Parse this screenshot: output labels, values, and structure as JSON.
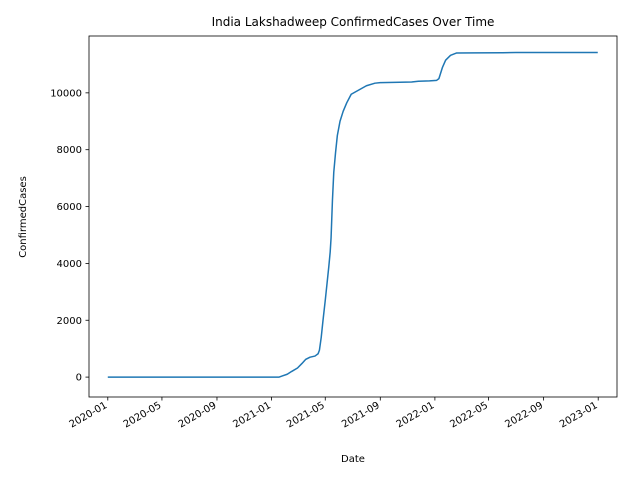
{
  "chart_data": {
    "type": "line",
    "title": "India Lakshadweep ConfirmedCases Over Time",
    "xlabel": "Date",
    "ylabel": "ConfirmedCases",
    "x_ticks": [
      "2020-01",
      "2020-05",
      "2020-09",
      "2021-01",
      "2021-05",
      "2021-09",
      "2022-01",
      "2022-05",
      "2022-09",
      "2023-01"
    ],
    "y_ticks": [
      0,
      2000,
      4000,
      6000,
      8000,
      10000
    ],
    "xlim": [
      "2019-11-20",
      "2023-02-12"
    ],
    "ylim": [
      -700,
      12000
    ],
    "grid": false,
    "series": [
      {
        "color": "#1f77b4",
        "points": [
          [
            "2020-01-01",
            0
          ],
          [
            "2020-06-01",
            0
          ],
          [
            "2020-12-01",
            0
          ],
          [
            "2021-01-18",
            0
          ],
          [
            "2021-01-25",
            40
          ],
          [
            "2021-02-05",
            100
          ],
          [
            "2021-02-15",
            200
          ],
          [
            "2021-02-28",
            320
          ],
          [
            "2021-03-10",
            480
          ],
          [
            "2021-03-18",
            620
          ],
          [
            "2021-03-28",
            700
          ],
          [
            "2021-04-08",
            740
          ],
          [
            "2021-04-15",
            820
          ],
          [
            "2021-04-18",
            950
          ],
          [
            "2021-04-22",
            1400
          ],
          [
            "2021-04-26",
            2000
          ],
          [
            "2021-05-01",
            2700
          ],
          [
            "2021-05-05",
            3300
          ],
          [
            "2021-05-09",
            3900
          ],
          [
            "2021-05-12",
            4400
          ],
          [
            "2021-05-14",
            4900
          ],
          [
            "2021-05-17",
            6200
          ],
          [
            "2021-05-20",
            7200
          ],
          [
            "2021-05-24",
            7900
          ],
          [
            "2021-05-28",
            8500
          ],
          [
            "2021-06-03",
            9000
          ],
          [
            "2021-06-10",
            9350
          ],
          [
            "2021-06-18",
            9650
          ],
          [
            "2021-06-28",
            9950
          ],
          [
            "2021-07-15",
            10100
          ],
          [
            "2021-08-01",
            10250
          ],
          [
            "2021-08-20",
            10340
          ],
          [
            "2021-09-01",
            10360
          ],
          [
            "2021-10-01",
            10370
          ],
          [
            "2021-11-10",
            10380
          ],
          [
            "2021-11-25",
            10410
          ],
          [
            "2021-12-20",
            10420
          ],
          [
            "2022-01-05",
            10440
          ],
          [
            "2022-01-10",
            10500
          ],
          [
            "2022-01-18",
            10900
          ],
          [
            "2022-01-25",
            11150
          ],
          [
            "2022-02-05",
            11320
          ],
          [
            "2022-02-18",
            11400
          ],
          [
            "2022-04-01",
            11405
          ],
          [
            "2022-06-01",
            11410
          ],
          [
            "2022-07-01",
            11420
          ],
          [
            "2022-09-01",
            11420
          ],
          [
            "2022-12-31",
            11420
          ]
        ]
      }
    ]
  }
}
